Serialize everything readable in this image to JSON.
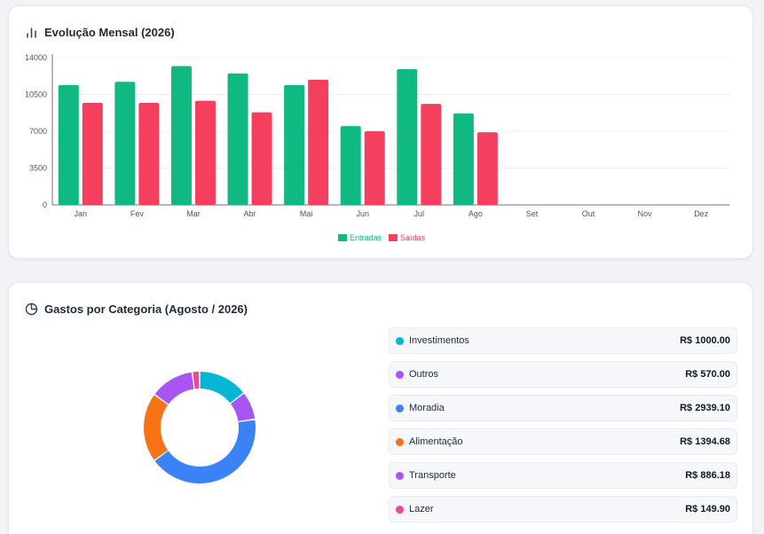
{
  "evolucao": {
    "title": "Evolução Mensal (2026)",
    "icon": "bar-chart-icon"
  },
  "gastos": {
    "title": "Gastos por Categoria (Agosto / 2026)",
    "icon": "pie-chart-icon"
  },
  "categories": [
    {
      "name": "Investimentos",
      "value": "R$ 1000.00",
      "color": "#06b6d4"
    },
    {
      "name": "Outros",
      "value": "R$ 570.00",
      "color": "#a855f7"
    },
    {
      "name": "Moradia",
      "value": "R$ 2939.10",
      "color": "#3b82f6"
    },
    {
      "name": "Alimentação",
      "value": "R$ 1394.68",
      "color": "#f97316"
    },
    {
      "name": "Transporte",
      "value": "R$ 886.18",
      "color": "#a855f7"
    },
    {
      "name": "Lazer",
      "value": "R$ 149.90",
      "color": "#ec4899"
    }
  ],
  "chart_data": [
    {
      "type": "bar",
      "title": "Evolução Mensal (2026)",
      "categories": [
        "Jan",
        "Fev",
        "Mar",
        "Abr",
        "Mai",
        "Jun",
        "Jul",
        "Ago",
        "Set",
        "Out",
        "Nov",
        "Dez"
      ],
      "series": [
        {
          "name": "Entradas",
          "color": "#10b981",
          "values": [
            11400,
            11700,
            13200,
            12500,
            11400,
            7500,
            12900,
            8700,
            null,
            null,
            null,
            null
          ]
        },
        {
          "name": "Saídas",
          "color": "#f43f5e",
          "values": [
            9700,
            9700,
            9900,
            8800,
            11900,
            7000,
            9600,
            6900,
            null,
            null,
            null,
            null
          ]
        }
      ],
      "yticks": [
        0,
        3500,
        7000,
        10500,
        14000
      ],
      "ylim": [
        0,
        14000
      ],
      "grid": true,
      "legend": "bottom"
    },
    {
      "type": "pie",
      "title": "Gastos por Categoria (Agosto / 2026)",
      "labels": [
        "Investimentos",
        "Outros",
        "Moradia",
        "Alimentação",
        "Transporte",
        "Lazer"
      ],
      "values": [
        1000.0,
        570.0,
        2939.1,
        1394.68,
        886.18,
        149.9
      ],
      "colors": [
        "#06b6d4",
        "#a855f7",
        "#3b82f6",
        "#f97316",
        "#a855f7",
        "#ec4899"
      ],
      "donut": true
    }
  ]
}
